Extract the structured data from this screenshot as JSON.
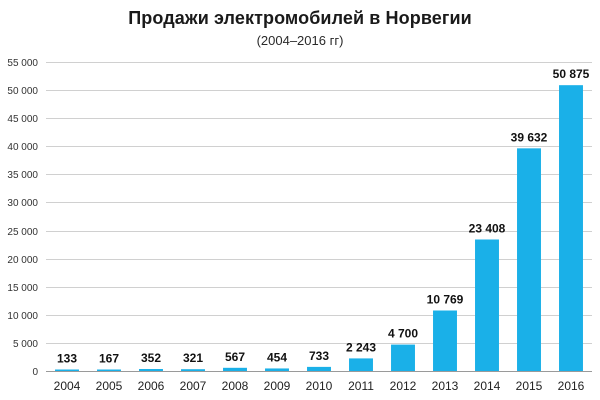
{
  "chart_data": {
    "type": "bar",
    "title": "Продажи электромобилей в Норвегии",
    "subtitle": "(2004–2016 гг)",
    "xlabel": "",
    "ylabel": "",
    "categories": [
      "2004",
      "2005",
      "2006",
      "2007",
      "2008",
      "2009",
      "2010",
      "2011",
      "2012",
      "2013",
      "2014",
      "2015",
      "2016"
    ],
    "values": [
      133,
      167,
      352,
      321,
      567,
      454,
      733,
      2243,
      4700,
      10769,
      23408,
      39632,
      50875
    ],
    "value_labels": [
      "133",
      "167",
      "352",
      "321",
      "567",
      "454",
      "733",
      "2 243",
      "4 700",
      "10 769",
      "23 408",
      "39 632",
      "50 875"
    ],
    "ylim": [
      0,
      55000
    ],
    "yticks": [
      0,
      5000,
      10000,
      15000,
      20000,
      25000,
      30000,
      35000,
      40000,
      45000,
      50000,
      55000
    ],
    "ytick_labels": [
      "0",
      "5 000",
      "10 000",
      "15 000",
      "20 000",
      "25 000",
      "30 000",
      "35 000",
      "40 000",
      "45 000",
      "50 000",
      "55 000"
    ],
    "grid": true,
    "legend": "none",
    "bar_color": "#1ab0e8"
  }
}
